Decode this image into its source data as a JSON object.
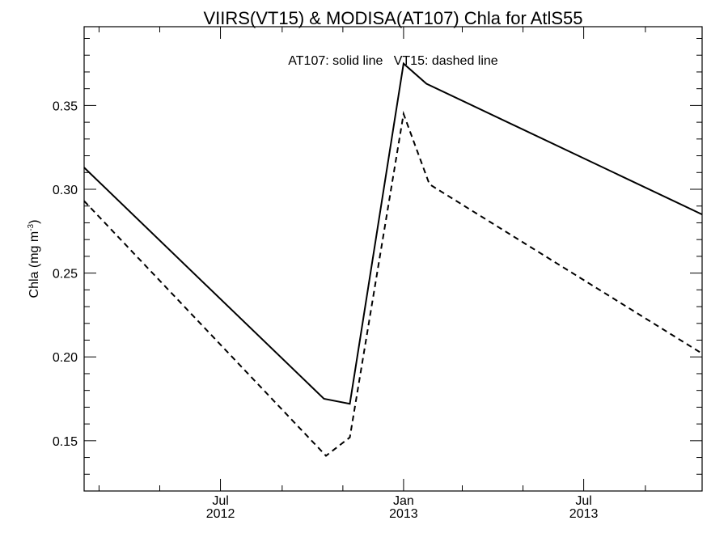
{
  "chart_data": {
    "type": "line",
    "title": "VIIRS(VT15) & MODISA(AT107)  Chla for AtlS55",
    "ylabel": "Chla (mg m",
    "ylabel_sup": "-3",
    "ylabel_close": ")",
    "annotation": "AT107: solid line   VT15: dashed line",
    "xlim": [
      "2012-02-15",
      "2013-10-28"
    ],
    "ylim": [
      0.12,
      0.397
    ],
    "y_ticks": [
      "0.15",
      "0.20",
      "0.25",
      "0.30",
      "0.35"
    ],
    "y_tick_values": [
      0.15,
      0.2,
      0.25,
      0.3,
      0.35
    ],
    "y_minor_step": 0.01,
    "x_ticks": [
      {
        "date": "2012-07-01",
        "line1": "Jul",
        "line2": "2012"
      },
      {
        "date": "2013-01-01",
        "line1": "Jan",
        "line2": "2013"
      },
      {
        "date": "2013-07-01",
        "line1": "Jul",
        "line2": "2013"
      }
    ],
    "x_minor_dates": [
      "2012-03-01",
      "2012-05-01",
      "2012-09-01",
      "2012-11-01",
      "2013-03-01",
      "2013-05-01",
      "2013-09-01"
    ],
    "grid": false,
    "series": [
      {
        "name": "AT107",
        "style": "solid",
        "x": [
          "2012-02-15",
          "2012-10-13",
          "2012-11-08",
          "2013-01-01",
          "2013-01-24",
          "2013-10-28"
        ],
        "y": [
          0.313,
          0.175,
          0.172,
          0.375,
          0.363,
          0.285
        ]
      },
      {
        "name": "VT15",
        "style": "dashed",
        "x": [
          "2012-02-15",
          "2012-10-15",
          "2012-11-08",
          "2013-01-01",
          "2013-01-27",
          "2013-10-28"
        ],
        "y": [
          0.293,
          0.141,
          0.152,
          0.345,
          0.303,
          0.202
        ]
      }
    ]
  }
}
